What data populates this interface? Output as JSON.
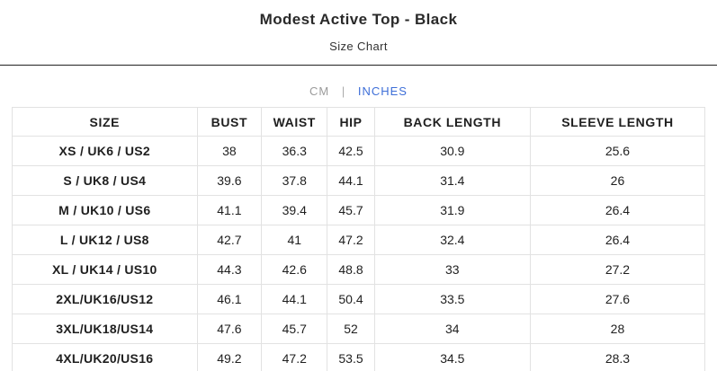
{
  "page": {
    "title": "Modest Active Top - Black",
    "subtitle": "Size Chart"
  },
  "unit_toggle": {
    "cm_label": "CM",
    "separator": "|",
    "inches_label": "INCHES",
    "active_unit": "INCHES"
  },
  "colors": {
    "accent_blue": "#3e6fd8",
    "inactive_gray": "#9b9b9b",
    "table_border": "#e2e2e2",
    "divider_dark": "#222222"
  },
  "table": {
    "columns": [
      "SIZE",
      "BUST",
      "WAIST",
      "HIP",
      "BACK LENGTH",
      "SLEEVE LENGTH"
    ],
    "rows": [
      [
        "XS / UK6 / US2",
        "38",
        "36.3",
        "42.5",
        "30.9",
        "25.6"
      ],
      [
        "S / UK8 / US4",
        "39.6",
        "37.8",
        "44.1",
        "31.4",
        "26"
      ],
      [
        "M / UK10 / US6",
        "41.1",
        "39.4",
        "45.7",
        "31.9",
        "26.4"
      ],
      [
        "L / UK12 / US8",
        "42.7",
        "41",
        "47.2",
        "32.4",
        "26.4"
      ],
      [
        "XL / UK14 / US10",
        "44.3",
        "42.6",
        "48.8",
        "33",
        "27.2"
      ],
      [
        "2XL/UK16/US12",
        "46.1",
        "44.1",
        "50.4",
        "33.5",
        "27.6"
      ],
      [
        "3XL/UK18/US14",
        "47.6",
        "45.7",
        "52",
        "34",
        "28"
      ],
      [
        "4XL/UK20/US16",
        "49.2",
        "47.2",
        "53.5",
        "34.5",
        "28.3"
      ]
    ]
  }
}
